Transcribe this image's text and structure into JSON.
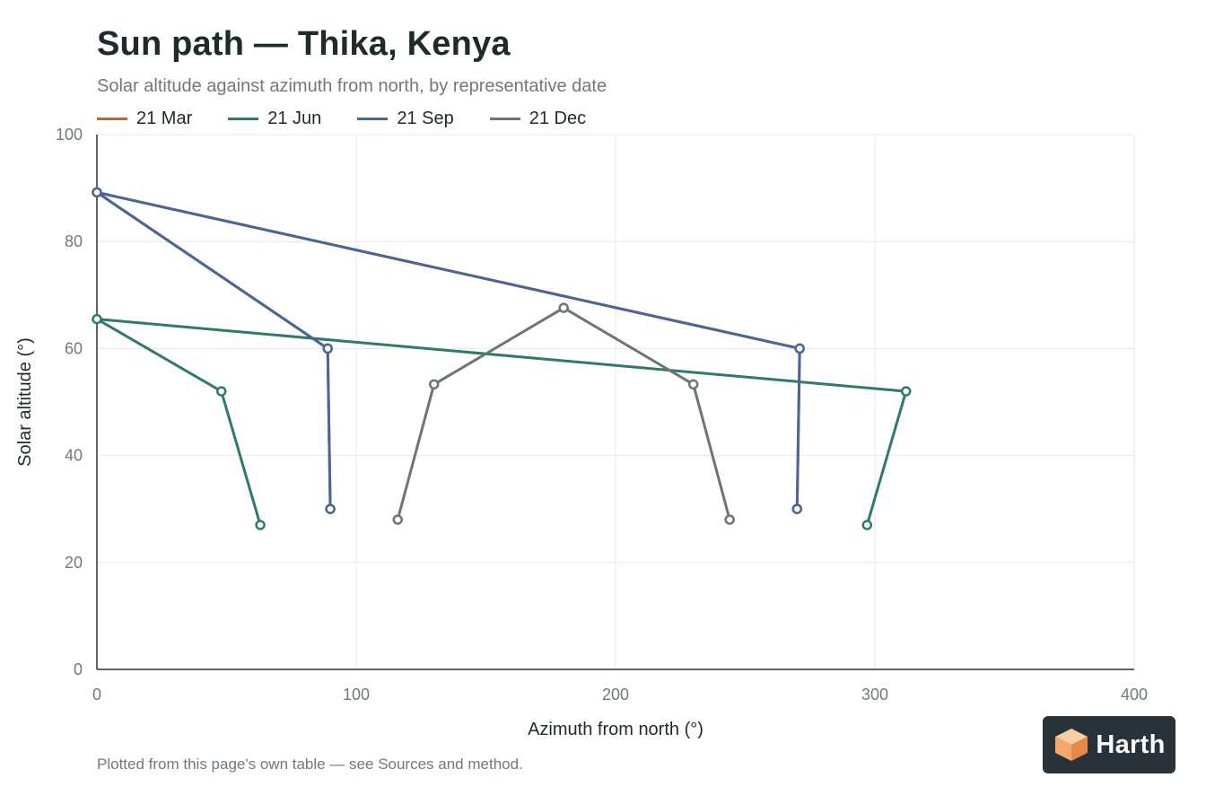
{
  "chart_data": {
    "type": "line",
    "title": "Sun path — Thika, Kenya",
    "subtitle": "Solar altitude against azimuth from north, by representative date",
    "xlabel": "Azimuth from north (°)",
    "ylabel": "Solar altitude (°)",
    "xlim": [
      0,
      400
    ],
    "ylim": [
      0,
      100
    ],
    "x_ticks": [
      0,
      100,
      200,
      300,
      400
    ],
    "y_ticks": [
      0,
      20,
      40,
      60,
      80,
      100
    ],
    "grid": true,
    "legend_position": "top-left",
    "series": [
      {
        "name": "21 Mar",
        "color": "#b4693a",
        "points": [
          [
            90,
            30
          ],
          [
            89,
            60
          ],
          [
            0,
            89.2
          ],
          [
            271,
            60
          ],
          [
            270,
            30
          ]
        ]
      },
      {
        "name": "21 Jun",
        "color": "#2e7a6c",
        "points": [
          [
            63,
            27
          ],
          [
            48,
            52
          ],
          [
            0,
            65.5
          ],
          [
            312,
            52
          ],
          [
            297,
            27
          ]
        ]
      },
      {
        "name": "21 Sep",
        "color": "#4a6698",
        "points": [
          [
            90,
            30
          ],
          [
            89,
            60
          ],
          [
            0,
            89.2
          ],
          [
            271,
            60
          ],
          [
            270,
            30
          ]
        ]
      },
      {
        "name": "21 Dec",
        "color": "#6c7672",
        "points": [
          [
            116,
            28
          ],
          [
            130,
            53.3
          ],
          [
            180,
            67.6
          ],
          [
            230,
            53.3
          ],
          [
            244,
            28
          ]
        ]
      }
    ]
  },
  "footnote": "Plotted from this page's own table — see Sources and method.",
  "brand": {
    "name": "Harth",
    "icon": "cube-logo-icon",
    "background": "#27323a",
    "accent": "#f5a86b"
  }
}
